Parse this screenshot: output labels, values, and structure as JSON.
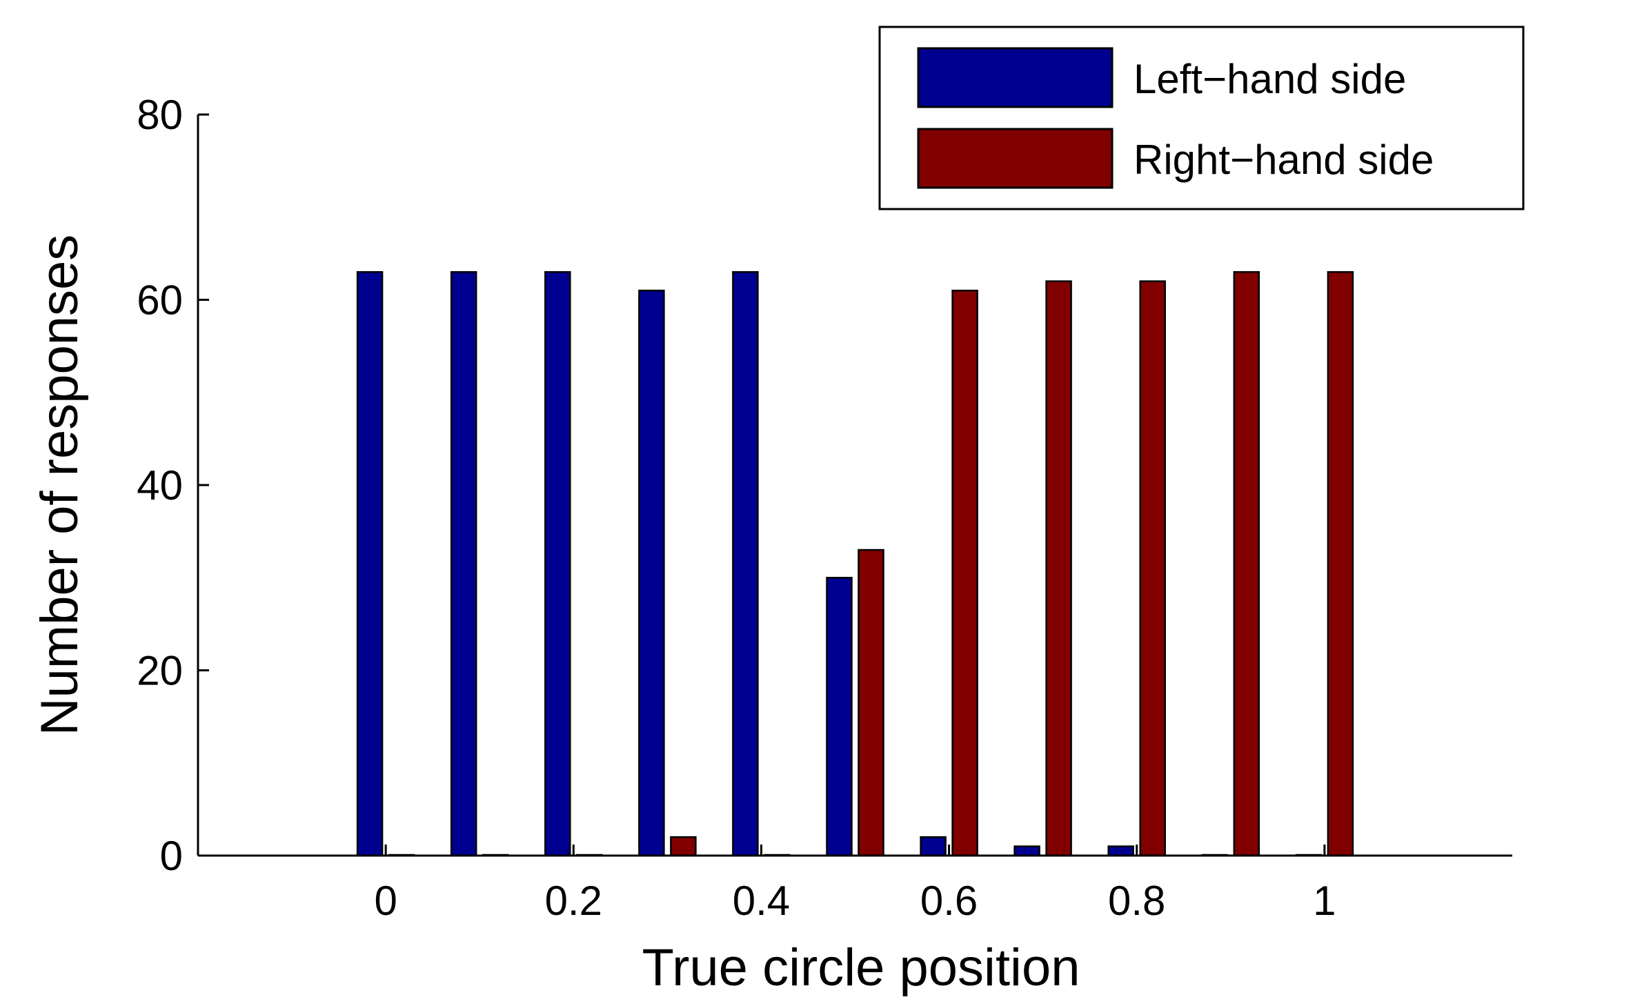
{
  "chart_data": {
    "type": "bar",
    "xlabel": "True circle position",
    "ylabel": "Number of responses",
    "x": [
      0,
      0.1,
      0.2,
      0.3,
      0.4,
      0.5,
      0.6,
      0.7,
      0.8,
      0.9,
      1.0
    ],
    "xticks": [
      0,
      0.2,
      0.4,
      0.6,
      0.8,
      1
    ],
    "xtick_labels": [
      "0",
      "0.2",
      "0.4",
      "0.6",
      "0.8",
      "1"
    ],
    "yticks": [
      0,
      20,
      40,
      60,
      80
    ],
    "ytick_labels": [
      "0",
      "20",
      "40",
      "60",
      "80"
    ],
    "xlim": [
      -0.2,
      1.2
    ],
    "ylim": [
      0,
      80
    ],
    "grid": false,
    "legend_position": "top-right",
    "series": [
      {
        "name": "Left−hand side",
        "color": "#000090",
        "values": [
          63,
          63,
          63,
          61,
          63,
          30,
          2,
          1,
          1,
          0,
          0
        ]
      },
      {
        "name": "Right−hand side",
        "color": "#800000",
        "values": [
          0,
          0,
          0,
          2,
          0,
          33,
          61,
          62,
          62,
          63,
          63
        ]
      }
    ]
  }
}
